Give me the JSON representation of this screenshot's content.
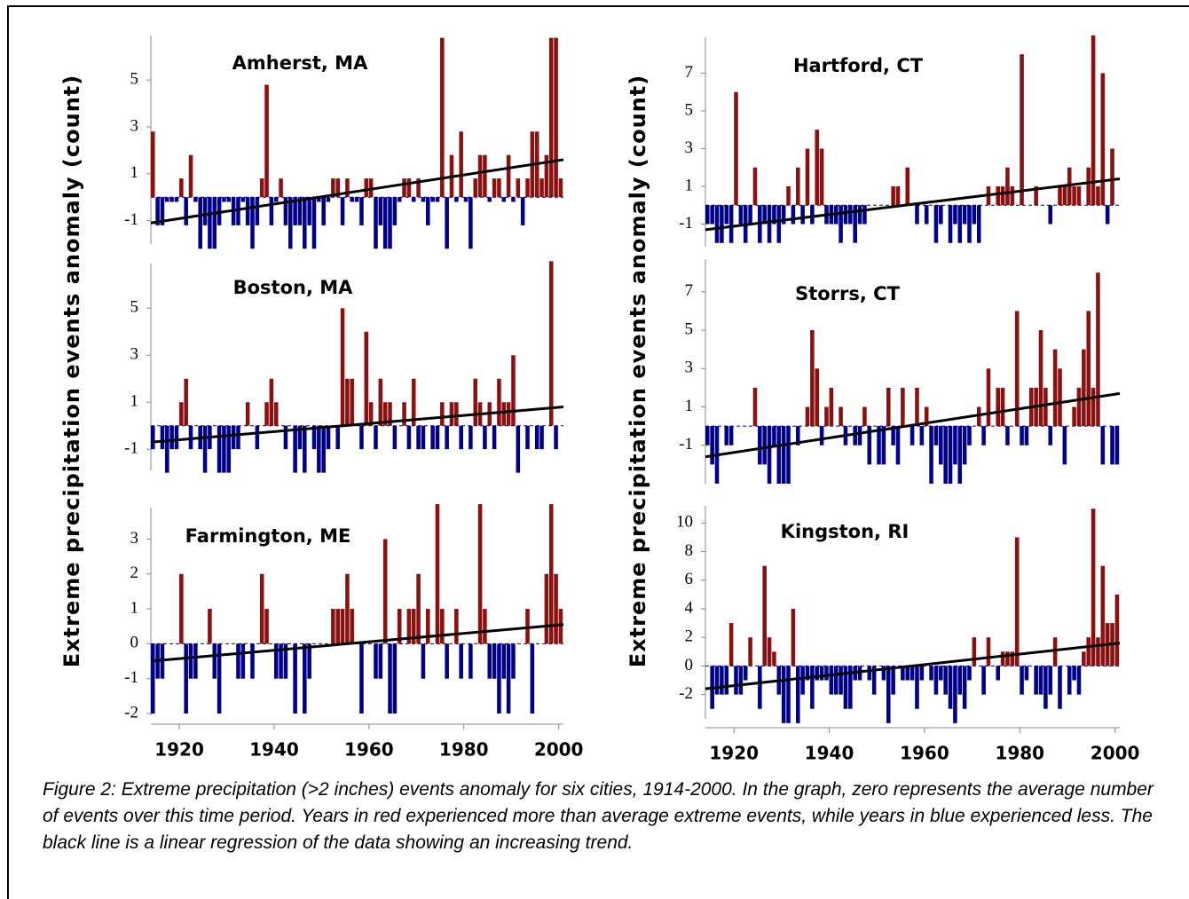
{
  "ylabel": "Extreme precipitation events anomaly (count)",
  "caption": "Figure 2: Extreme precipitation (>2 inches) events anomaly for six cities, 1914-2000. In the graph, zero represents the average number of events over this time period.  Years in red experienced more than average extreme events, while years in blue experienced less.  The black line is a linear regression of the data showing an increasing trend.",
  "chart_data": [
    {
      "type": "bar",
      "title": "Amherst, MA",
      "xlim": [
        1914,
        2001
      ],
      "ylim": [
        -2,
        6.9
      ],
      "yticks": [
        -1,
        1,
        3,
        5
      ],
      "colors": {
        "positive": "#8b1010",
        "negative": "#00008b"
      },
      "x_start": 1914,
      "values": [
        2.8,
        -1.2,
        -1.2,
        -0.2,
        -0.2,
        -0.2,
        0.8,
        -1.2,
        1.8,
        -0.2,
        -2.2,
        -1.2,
        -2.2,
        -2.2,
        -1.2,
        -0.2,
        -0.2,
        -1.2,
        -1.2,
        -0.2,
        -1.2,
        -2.2,
        -1.2,
        0.8,
        4.8,
        -1.2,
        -0.2,
        0.8,
        -1.2,
        -2.2,
        -1.2,
        -1.2,
        -2.2,
        -1.2,
        -2.2,
        -0.2,
        -1.2,
        -0.2,
        0.8,
        0.8,
        -1.2,
        0.8,
        -0.2,
        -0.2,
        -1.2,
        0.8,
        0.8,
        -2.2,
        -1.2,
        -2.2,
        -2.2,
        -1.2,
        -0.2,
        0.8,
        0.8,
        -0.2,
        0.8,
        -0.2,
        -1.2,
        -0.2,
        -0.2,
        6.8,
        -2.2,
        1.8,
        -0.2,
        2.8,
        -0.2,
        -2.2,
        0.8,
        1.8,
        1.8,
        -0.2,
        0.8,
        0.8,
        -0.2,
        1.8,
        -0.2,
        0.8,
        -1.2,
        0.8,
        2.8,
        2.8,
        0.8,
        1.8,
        6.8,
        6.8,
        0.8
      ],
      "trend": [
        -1.1,
        1.6
      ]
    },
    {
      "type": "bar",
      "title": "Boston, MA",
      "xlim": [
        1914,
        2001
      ],
      "ylim": [
        -1.9,
        6.9
      ],
      "yticks": [
        -1,
        1,
        3,
        5
      ],
      "colors": {
        "positive": "#8b1010",
        "negative": "#00008b"
      },
      "x_start": 1914,
      "values": [
        -1,
        0,
        -1,
        -2,
        -1,
        -1,
        1,
        2,
        -1,
        0,
        -1,
        -2,
        -1,
        0,
        -2,
        -2,
        -2,
        -1,
        -1,
        0,
        1,
        0,
        -1,
        0,
        1,
        2,
        1,
        0,
        -1,
        0,
        -2,
        -1,
        -2,
        0,
        -1,
        -2,
        -2,
        -1,
        0,
        -1,
        5,
        2,
        2,
        0,
        -1,
        4,
        1,
        -1,
        2,
        1,
        1,
        -1,
        0,
        1,
        -1,
        2,
        -1,
        -1,
        0,
        -1,
        -1,
        1,
        -1,
        1,
        1,
        -1,
        0,
        -1,
        2,
        1,
        -1,
        1,
        -1,
        2,
        1,
        1,
        3,
        -2,
        0,
        -1,
        0,
        -1,
        -1,
        0,
        7,
        -1,
        0
      ],
      "trend": [
        -0.7,
        0.8
      ]
    },
    {
      "type": "bar",
      "title": "Farmington, ME",
      "xlim": [
        1914,
        2001
      ],
      "ylim": [
        -2.05,
        3.9
      ],
      "yticks": [
        -2,
        -1,
        0,
        1,
        2,
        3
      ],
      "colors": {
        "positive": "#8b1010",
        "negative": "#00008b"
      },
      "x_start": 1914,
      "xticks": [
        1920,
        1940,
        1960,
        1980,
        2000
      ],
      "values": [
        -2,
        -1,
        -1,
        0,
        0,
        0,
        2,
        -2,
        -1,
        -1,
        0,
        0,
        1,
        -1,
        -2,
        0,
        0,
        0,
        -1,
        -1,
        0,
        -1,
        0,
        2,
        1,
        0,
        -1,
        -1,
        -1,
        0,
        -2,
        0,
        -2,
        -1,
        0,
        0,
        0,
        0,
        1,
        1,
        1,
        2,
        1,
        0,
        -2,
        0,
        0,
        -1,
        -1,
        3,
        -2,
        -2,
        1,
        0,
        1,
        1,
        2,
        -1,
        1,
        0,
        4,
        1,
        -1,
        0,
        1,
        -1,
        0,
        -1,
        0,
        4,
        1,
        -1,
        -1,
        -2,
        -1,
        -2,
        -1,
        0,
        0,
        1,
        -2,
        0,
        0,
        2,
        4,
        2,
        1
      ],
      "trend": [
        -0.5,
        0.55
      ]
    },
    {
      "type": "bar",
      "title": "Hartford, CT",
      "xlim": [
        1914,
        2001
      ],
      "ylim": [
        -2.2,
        8.9
      ],
      "yticks": [
        -1,
        1,
        3,
        5,
        7
      ],
      "colors": {
        "positive": "#8b1010",
        "negative": "#00008b"
      },
      "x_start": 1914,
      "values": [
        -1,
        -1,
        -2,
        -2,
        -1,
        -2,
        6,
        -1,
        -2,
        -1,
        2,
        -2,
        -1,
        -2,
        -1,
        -2,
        -1,
        1,
        -1,
        2,
        -1,
        3,
        -1,
        4,
        3,
        -1,
        -1,
        -1,
        -2,
        -1,
        -1,
        -2,
        -1,
        -1,
        0,
        0,
        0,
        0,
        0,
        1,
        1,
        0,
        2,
        0,
        -1,
        0,
        -1,
        0,
        -2,
        -1,
        0,
        -2,
        -1,
        -2,
        -1,
        -2,
        -1,
        -2,
        0,
        1,
        0,
        1,
        1,
        2,
        1,
        0,
        8,
        0,
        0,
        1,
        0,
        0,
        -1,
        0,
        1,
        1,
        2,
        1,
        1,
        0,
        2,
        9,
        1,
        7,
        -1,
        3,
        0
      ],
      "trend": [
        -1.3,
        1.4
      ]
    },
    {
      "type": "bar",
      "title": "Storrs, CT",
      "xlim": [
        1914,
        2001
      ],
      "ylim": [
        -3,
        8.7
      ],
      "yticks": [
        -1,
        1,
        3,
        5,
        7
      ],
      "colors": {
        "positive": "#8b1010",
        "negative": "#00008b"
      },
      "x_start": 1914,
      "values": [
        -1,
        -2,
        -3,
        0,
        -1,
        -1,
        0,
        0,
        0,
        0,
        2,
        -2,
        -2,
        -3,
        -1,
        -3,
        -3,
        -3,
        0,
        -1,
        0,
        1,
        5,
        3,
        -1,
        1,
        2,
        0,
        1,
        -1,
        0,
        -1,
        -1,
        1,
        -2,
        0,
        -2,
        -2,
        2,
        -1,
        -2,
        2,
        0,
        -1,
        2,
        -1,
        1,
        -3,
        -1,
        -2,
        -3,
        -3,
        -2,
        -3,
        -2,
        -1,
        0,
        1,
        -1,
        3,
        0,
        2,
        2,
        -1,
        0,
        6,
        -1,
        -1,
        2,
        2,
        5,
        2,
        -1,
        4,
        3,
        -2,
        0,
        1,
        2,
        4,
        6,
        2,
        8,
        -2,
        0,
        -2,
        -2
      ],
      "trend": [
        -1.6,
        1.7
      ]
    },
    {
      "type": "bar",
      "title": "Kingston, RI",
      "xlim": [
        1914,
        2001
      ],
      "ylim": [
        -3.7,
        11.2
      ],
      "yticks": [
        -2,
        0,
        2,
        4,
        6,
        8,
        10
      ],
      "colors": {
        "positive": "#8b1010",
        "negative": "#00008b"
      },
      "x_start": 1914,
      "xticks": [
        1920,
        1940,
        1960,
        1980,
        2000
      ],
      "values": [
        0,
        -3,
        -2,
        -2,
        -2,
        3,
        -2,
        -2,
        -1,
        2,
        0,
        -3,
        7,
        2,
        1,
        -2,
        -4,
        -4,
        4,
        -4,
        -2,
        -1,
        -3,
        -1,
        -1,
        -1,
        -2,
        -2,
        -2,
        -3,
        -3,
        -1,
        -1,
        0,
        -1,
        -2,
        0,
        -1,
        -4,
        -2,
        0,
        -1,
        -1,
        -1,
        -3,
        -1,
        0,
        -1,
        -2,
        -1,
        -2,
        -3,
        -4,
        -2,
        -3,
        -1,
        2,
        0,
        -2,
        2,
        0,
        -1,
        1,
        1,
        1,
        9,
        -2,
        -1,
        0,
        -2,
        -2,
        -3,
        -2,
        2,
        -3,
        0,
        -2,
        -1,
        -2,
        1,
        2,
        11,
        2,
        7,
        3,
        3,
        5
      ],
      "trend": [
        -1.6,
        1.6
      ]
    }
  ]
}
